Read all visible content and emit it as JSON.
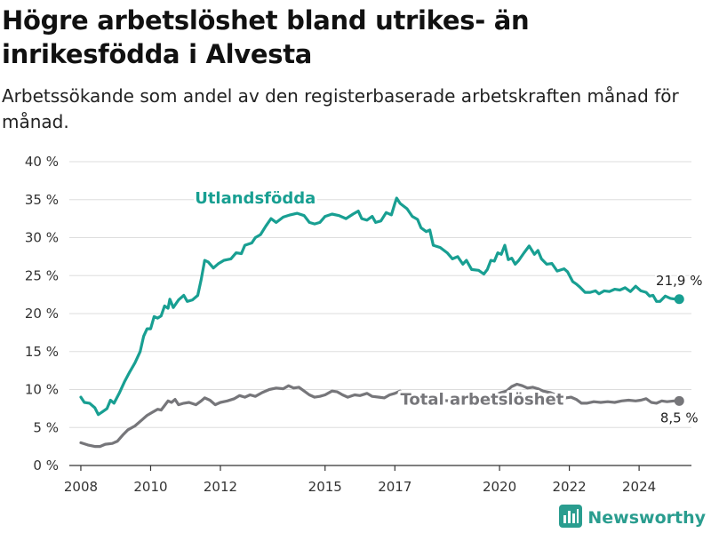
{
  "title": "Högre arbetslöshet bland utrikes- än inrikesfödda i Alvesta",
  "subtitle": "Arbetssökande som andel av den registerbaserade arbetskraften månad för månad.",
  "brand": {
    "name": "Newsworthy",
    "icon": "bar-chart-logo-icon"
  },
  "colors": {
    "utlandsfodda": "#189f92",
    "total": "#76767a",
    "grid": "#dddddd",
    "axis": "#333333"
  },
  "chart_data": {
    "type": "line",
    "xlim": [
      2007.67,
      2025.5
    ],
    "ylim": [
      0,
      40
    ],
    "x_ticks": [
      2008,
      2010,
      2012,
      2015,
      2017,
      2020,
      2022,
      2024
    ],
    "x_tick_labels": [
      "2008",
      "2010",
      "2012",
      "2015",
      "2017",
      "2020",
      "2022",
      "2024"
    ],
    "y_ticks": [
      0,
      5,
      10,
      15,
      20,
      25,
      30,
      35,
      40
    ],
    "y_tick_labels": [
      "0 %",
      "5 %",
      "10 %",
      "15 %",
      "20 %",
      "25 %",
      "30 %",
      "35 %",
      "40 %"
    ],
    "grid": "horizontal",
    "series": [
      {
        "name": "Utlandsfödda",
        "color": "#189f92",
        "end_label": "21,9 %",
        "points": [
          [
            2008.0,
            9.0
          ],
          [
            2008.1,
            8.3
          ],
          [
            2008.25,
            8.2
          ],
          [
            2008.4,
            7.6
          ],
          [
            2008.5,
            6.7
          ],
          [
            2008.6,
            7.0
          ],
          [
            2008.75,
            7.5
          ],
          [
            2008.85,
            8.6
          ],
          [
            2008.95,
            8.2
          ],
          [
            2009.1,
            9.5
          ],
          [
            2009.25,
            11.0
          ],
          [
            2009.4,
            12.3
          ],
          [
            2009.55,
            13.5
          ],
          [
            2009.7,
            15.0
          ],
          [
            2009.8,
            17.0
          ],
          [
            2009.9,
            18.0
          ],
          [
            2010.0,
            18.0
          ],
          [
            2010.1,
            19.6
          ],
          [
            2010.2,
            19.4
          ],
          [
            2010.3,
            19.7
          ],
          [
            2010.4,
            21.0
          ],
          [
            2010.5,
            20.7
          ],
          [
            2010.55,
            21.9
          ],
          [
            2010.65,
            20.8
          ],
          [
            2010.8,
            21.8
          ],
          [
            2010.95,
            22.4
          ],
          [
            2011.05,
            21.6
          ],
          [
            2011.2,
            21.8
          ],
          [
            2011.35,
            22.4
          ],
          [
            2011.45,
            24.5
          ],
          [
            2011.55,
            27.0
          ],
          [
            2011.65,
            26.8
          ],
          [
            2011.8,
            26.0
          ],
          [
            2011.95,
            26.6
          ],
          [
            2012.1,
            27.0
          ],
          [
            2012.3,
            27.2
          ],
          [
            2012.45,
            28.0
          ],
          [
            2012.6,
            27.9
          ],
          [
            2012.7,
            29.0
          ],
          [
            2012.9,
            29.3
          ],
          [
            2013.0,
            30.0
          ],
          [
            2013.15,
            30.4
          ],
          [
            2013.3,
            31.5
          ],
          [
            2013.45,
            32.5
          ],
          [
            2013.6,
            32.0
          ],
          [
            2013.8,
            32.7
          ],
          [
            2014.0,
            33.0
          ],
          [
            2014.2,
            33.2
          ],
          [
            2014.4,
            32.9
          ],
          [
            2014.55,
            32.0
          ],
          [
            2014.7,
            31.8
          ],
          [
            2014.85,
            32.0
          ],
          [
            2015.0,
            32.8
          ],
          [
            2015.2,
            33.1
          ],
          [
            2015.4,
            32.9
          ],
          [
            2015.6,
            32.5
          ],
          [
            2015.8,
            33.1
          ],
          [
            2015.95,
            33.5
          ],
          [
            2016.05,
            32.5
          ],
          [
            2016.2,
            32.3
          ],
          [
            2016.35,
            32.8
          ],
          [
            2016.45,
            32.0
          ],
          [
            2016.6,
            32.2
          ],
          [
            2016.75,
            33.3
          ],
          [
            2016.9,
            33.0
          ],
          [
            2017.0,
            34.5
          ],
          [
            2017.05,
            35.2
          ],
          [
            2017.15,
            34.5
          ],
          [
            2017.35,
            33.8
          ],
          [
            2017.5,
            32.8
          ],
          [
            2017.65,
            32.4
          ],
          [
            2017.75,
            31.3
          ],
          [
            2017.9,
            30.8
          ],
          [
            2018.0,
            31.0
          ],
          [
            2018.1,
            29.0
          ],
          [
            2018.3,
            28.7
          ],
          [
            2018.5,
            28.0
          ],
          [
            2018.65,
            27.2
          ],
          [
            2018.8,
            27.5
          ],
          [
            2018.95,
            26.5
          ],
          [
            2019.05,
            27.0
          ],
          [
            2019.2,
            25.8
          ],
          [
            2019.4,
            25.7
          ],
          [
            2019.55,
            25.2
          ],
          [
            2019.65,
            25.8
          ],
          [
            2019.75,
            27.0
          ],
          [
            2019.85,
            26.9
          ],
          [
            2019.95,
            28.0
          ],
          [
            2020.05,
            27.8
          ],
          [
            2020.15,
            29.0
          ],
          [
            2020.25,
            27.1
          ],
          [
            2020.35,
            27.3
          ],
          [
            2020.45,
            26.5
          ],
          [
            2020.55,
            27.0
          ],
          [
            2020.7,
            28.0
          ],
          [
            2020.85,
            28.9
          ],
          [
            2021.0,
            27.8
          ],
          [
            2021.1,
            28.3
          ],
          [
            2021.2,
            27.2
          ],
          [
            2021.35,
            26.5
          ],
          [
            2021.5,
            26.6
          ],
          [
            2021.65,
            25.6
          ],
          [
            2021.85,
            25.9
          ],
          [
            2021.95,
            25.5
          ],
          [
            2022.1,
            24.2
          ],
          [
            2022.2,
            23.9
          ],
          [
            2022.3,
            23.5
          ],
          [
            2022.45,
            22.8
          ],
          [
            2022.6,
            22.8
          ],
          [
            2022.75,
            23.0
          ],
          [
            2022.85,
            22.6
          ],
          [
            2023.0,
            23.0
          ],
          [
            2023.15,
            22.9
          ],
          [
            2023.3,
            23.2
          ],
          [
            2023.45,
            23.1
          ],
          [
            2023.6,
            23.4
          ],
          [
            2023.75,
            22.9
          ],
          [
            2023.9,
            23.6
          ],
          [
            2024.05,
            23.0
          ],
          [
            2024.2,
            22.8
          ],
          [
            2024.3,
            22.3
          ],
          [
            2024.4,
            22.4
          ],
          [
            2024.5,
            21.6
          ],
          [
            2024.6,
            21.6
          ],
          [
            2024.75,
            22.3
          ],
          [
            2024.9,
            22.0
          ],
          [
            2025.05,
            21.9
          ],
          [
            2025.15,
            21.9
          ]
        ]
      },
      {
        "name": "Total arbetslöshet",
        "color": "#76767a",
        "end_label": "8,5 %",
        "points": [
          [
            2008.0,
            3.0
          ],
          [
            2008.2,
            2.7
          ],
          [
            2008.4,
            2.5
          ],
          [
            2008.55,
            2.5
          ],
          [
            2008.7,
            2.8
          ],
          [
            2008.9,
            2.9
          ],
          [
            2009.05,
            3.2
          ],
          [
            2009.2,
            4.0
          ],
          [
            2009.35,
            4.7
          ],
          [
            2009.55,
            5.2
          ],
          [
            2009.75,
            6.0
          ],
          [
            2009.9,
            6.6
          ],
          [
            2010.05,
            7.0
          ],
          [
            2010.2,
            7.4
          ],
          [
            2010.3,
            7.3
          ],
          [
            2010.4,
            7.9
          ],
          [
            2010.5,
            8.5
          ],
          [
            2010.6,
            8.3
          ],
          [
            2010.7,
            8.7
          ],
          [
            2010.8,
            8.0
          ],
          [
            2010.95,
            8.2
          ],
          [
            2011.1,
            8.3
          ],
          [
            2011.3,
            8.0
          ],
          [
            2011.45,
            8.5
          ],
          [
            2011.55,
            8.9
          ],
          [
            2011.7,
            8.6
          ],
          [
            2011.85,
            8.0
          ],
          [
            2012.0,
            8.3
          ],
          [
            2012.2,
            8.5
          ],
          [
            2012.4,
            8.8
          ],
          [
            2012.55,
            9.2
          ],
          [
            2012.7,
            9.0
          ],
          [
            2012.85,
            9.3
          ],
          [
            2013.0,
            9.1
          ],
          [
            2013.2,
            9.6
          ],
          [
            2013.4,
            10.0
          ],
          [
            2013.6,
            10.2
          ],
          [
            2013.8,
            10.1
          ],
          [
            2013.95,
            10.5
          ],
          [
            2014.1,
            10.2
          ],
          [
            2014.25,
            10.3
          ],
          [
            2014.4,
            9.8
          ],
          [
            2014.55,
            9.3
          ],
          [
            2014.7,
            9.0
          ],
          [
            2014.85,
            9.1
          ],
          [
            2015.0,
            9.3
          ],
          [
            2015.2,
            9.8
          ],
          [
            2015.35,
            9.7
          ],
          [
            2015.5,
            9.3
          ],
          [
            2015.65,
            9.0
          ],
          [
            2015.85,
            9.3
          ],
          [
            2016.0,
            9.2
          ],
          [
            2016.2,
            9.5
          ],
          [
            2016.35,
            9.1
          ],
          [
            2016.55,
            9.0
          ],
          [
            2016.7,
            8.9
          ],
          [
            2016.85,
            9.3
          ],
          [
            2017.0,
            9.5
          ],
          [
            2017.15,
            9.8
          ],
          [
            2017.35,
            9.2
          ],
          [
            2017.55,
            8.9
          ],
          [
            2017.75,
            9.0
          ],
          [
            2017.95,
            8.8
          ],
          [
            2018.15,
            8.6
          ],
          [
            2018.35,
            8.6
          ],
          [
            2018.55,
            8.5
          ],
          [
            2018.75,
            8.6
          ],
          [
            2018.95,
            8.7
          ],
          [
            2019.15,
            8.6
          ],
          [
            2019.35,
            8.7
          ],
          [
            2019.55,
            8.8
          ],
          [
            2019.75,
            9.0
          ],
          [
            2019.9,
            9.3
          ],
          [
            2020.05,
            9.6
          ],
          [
            2020.2,
            9.8
          ],
          [
            2020.35,
            10.4
          ],
          [
            2020.5,
            10.7
          ],
          [
            2020.65,
            10.5
          ],
          [
            2020.8,
            10.2
          ],
          [
            2020.95,
            10.3
          ],
          [
            2021.1,
            10.1
          ],
          [
            2021.25,
            9.8
          ],
          [
            2021.45,
            9.6
          ],
          [
            2021.6,
            9.3
          ],
          [
            2021.75,
            9.2
          ],
          [
            2021.9,
            8.9
          ],
          [
            2022.05,
            9.0
          ],
          [
            2022.2,
            8.7
          ],
          [
            2022.35,
            8.2
          ],
          [
            2022.5,
            8.2
          ],
          [
            2022.7,
            8.4
          ],
          [
            2022.9,
            8.3
          ],
          [
            2023.1,
            8.4
          ],
          [
            2023.3,
            8.3
          ],
          [
            2023.5,
            8.5
          ],
          [
            2023.7,
            8.6
          ],
          [
            2023.9,
            8.5
          ],
          [
            2024.05,
            8.6
          ],
          [
            2024.2,
            8.8
          ],
          [
            2024.35,
            8.3
          ],
          [
            2024.5,
            8.2
          ],
          [
            2024.65,
            8.5
          ],
          [
            2024.8,
            8.4
          ],
          [
            2025.0,
            8.5
          ],
          [
            2025.15,
            8.5
          ]
        ]
      }
    ],
    "annotations": [
      {
        "text": "Utlandsfödda",
        "series": 0,
        "x": 2013.0,
        "y": 34.5
      },
      {
        "text": "Total arbetslöshet",
        "series": 1,
        "x": 2019.5,
        "y": 8.0
      }
    ]
  }
}
